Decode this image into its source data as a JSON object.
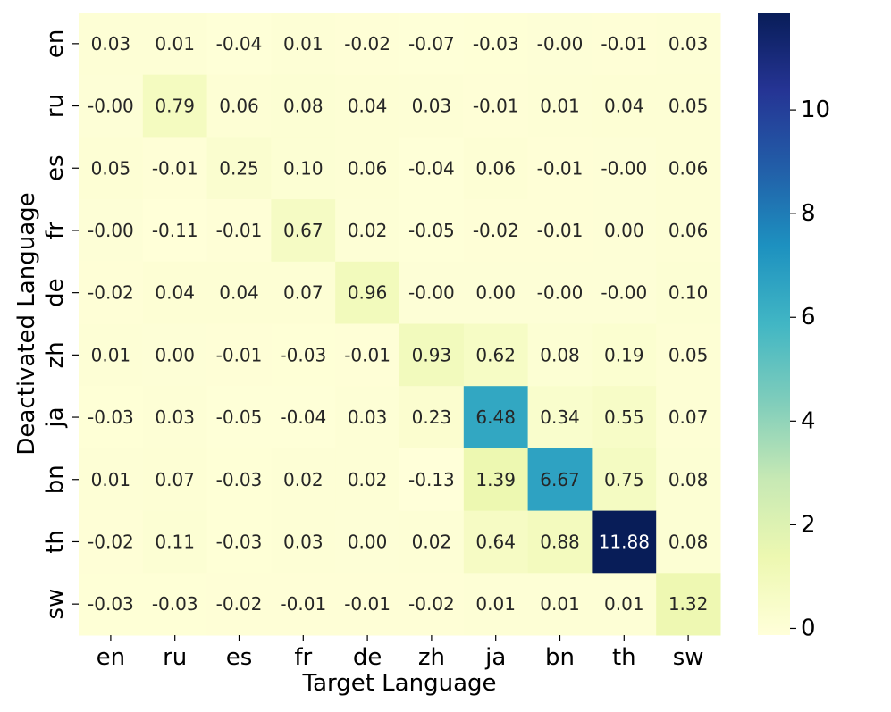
{
  "chart_data": {
    "type": "heatmap",
    "title": "",
    "xlabel": "Target Language",
    "ylabel": "Deactivated Language",
    "x_categories": [
      "en",
      "ru",
      "es",
      "fr",
      "de",
      "zh",
      "ja",
      "bn",
      "th",
      "sw"
    ],
    "y_categories": [
      "en",
      "ru",
      "es",
      "fr",
      "de",
      "zh",
      "ja",
      "bn",
      "th",
      "sw"
    ],
    "values": [
      [
        0.03,
        0.01,
        -0.04,
        0.01,
        -0.02,
        -0.07,
        -0.03,
        -0.0,
        -0.01,
        0.03
      ],
      [
        -0.0,
        0.79,
        0.06,
        0.08,
        0.04,
        0.03,
        -0.01,
        0.01,
        0.04,
        0.05
      ],
      [
        0.05,
        -0.01,
        0.25,
        0.1,
        0.06,
        -0.04,
        0.06,
        -0.01,
        -0.0,
        0.06
      ],
      [
        -0.0,
        -0.11,
        -0.01,
        0.67,
        0.02,
        -0.05,
        -0.02,
        -0.01,
        0.0,
        0.06
      ],
      [
        -0.02,
        0.04,
        0.04,
        0.07,
        0.96,
        -0.0,
        0.0,
        -0.0,
        -0.0,
        0.1
      ],
      [
        0.01,
        0.0,
        -0.01,
        -0.03,
        -0.01,
        0.93,
        0.62,
        0.08,
        0.19,
        0.05
      ],
      [
        -0.03,
        0.03,
        -0.05,
        -0.04,
        0.03,
        0.23,
        6.48,
        0.34,
        0.55,
        0.07
      ],
      [
        0.01,
        0.07,
        -0.03,
        0.02,
        0.02,
        -0.13,
        1.39,
        6.67,
        0.75,
        0.08
      ],
      [
        -0.02,
        0.11,
        -0.03,
        0.03,
        0.0,
        0.02,
        0.64,
        0.88,
        11.88,
        0.08
      ],
      [
        -0.03,
        -0.03,
        -0.02,
        -0.01,
        -0.01,
        -0.02,
        0.01,
        0.01,
        0.01,
        1.32
      ]
    ],
    "cell_labels": [
      [
        "0.03",
        "0.01",
        "-0.04",
        "0.01",
        "-0.02",
        "-0.07",
        "-0.03",
        "-0.00",
        "-0.01",
        "0.03"
      ],
      [
        "-0.00",
        "0.79",
        "0.06",
        "0.08",
        "0.04",
        "0.03",
        "-0.01",
        "0.01",
        "0.04",
        "0.05"
      ],
      [
        "0.05",
        "-0.01",
        "0.25",
        "0.10",
        "0.06",
        "-0.04",
        "0.06",
        "-0.01",
        "-0.00",
        "0.06"
      ],
      [
        "-0.00",
        "-0.11",
        "-0.01",
        "0.67",
        "0.02",
        "-0.05",
        "-0.02",
        "-0.01",
        "0.00",
        "0.06"
      ],
      [
        "-0.02",
        "0.04",
        "0.04",
        "0.07",
        "0.96",
        "-0.00",
        "0.00",
        "-0.00",
        "-0.00",
        "0.10"
      ],
      [
        "0.01",
        "0.00",
        "-0.01",
        "-0.03",
        "-0.01",
        "0.93",
        "0.62",
        "0.08",
        "0.19",
        "0.05"
      ],
      [
        "-0.03",
        "0.03",
        "-0.05",
        "-0.04",
        "0.03",
        "0.23",
        "6.48",
        "0.34",
        "0.55",
        "0.07"
      ],
      [
        "0.01",
        "0.07",
        "-0.03",
        "0.02",
        "0.02",
        "-0.13",
        "1.39",
        "6.67",
        "0.75",
        "0.08"
      ],
      [
        "-0.02",
        "0.11",
        "-0.03",
        "0.03",
        "0.00",
        "0.02",
        "0.64",
        "0.88",
        "11.88",
        "0.08"
      ],
      [
        "-0.03",
        "-0.03",
        "-0.02",
        "-0.01",
        "-0.01",
        "-0.02",
        "0.01",
        "0.01",
        "0.01",
        "1.32"
      ]
    ],
    "colormap": "YlGnBu",
    "colormap_stops": [
      "#ffffd9",
      "#edf8b1",
      "#c7e9b4",
      "#7fcdbb",
      "#41b6c4",
      "#1d91c0",
      "#225ea8",
      "#253494",
      "#081d58"
    ],
    "vmin": -0.13,
    "vmax": 11.88,
    "colorbar_ticks": [
      0,
      2,
      4,
      6,
      8,
      10
    ],
    "legend": "colorbar-right",
    "grid": false
  }
}
